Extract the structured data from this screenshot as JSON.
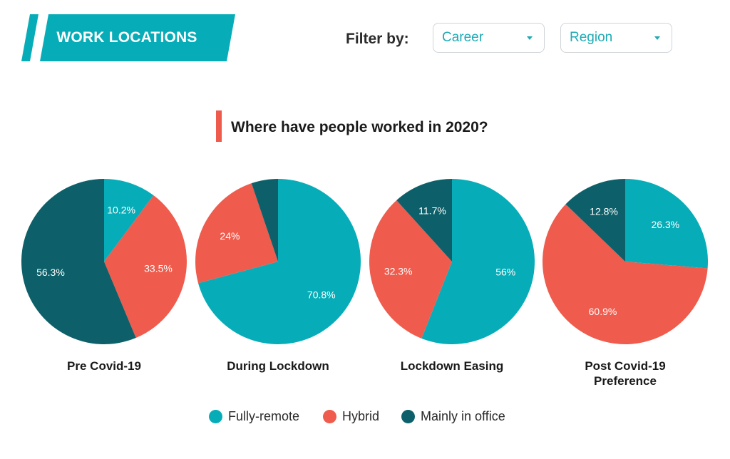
{
  "header": {
    "title": "WORK LOCATIONS"
  },
  "filters": {
    "label": "Filter by:",
    "career": {
      "value": "Career"
    },
    "region": {
      "value": "Region"
    }
  },
  "colors": {
    "fully_remote": "#06adb8",
    "hybrid": "#ef5b4c",
    "office": "#0d6069",
    "accent": "#ee5a4b",
    "banner": "#06adb8"
  },
  "chart_data": {
    "type": "pie",
    "title": "Where have people worked in 2020?",
    "legend_position": "bottom",
    "legend": [
      "Fully-remote",
      "Hybrid",
      "Mainly in office"
    ],
    "pies": [
      {
        "name": "Pre Covid-19",
        "slices": [
          {
            "category": "Fully-remote",
            "value": 10.2,
            "label": "10.2%"
          },
          {
            "category": "Hybrid",
            "value": 33.5,
            "label": "33.5%"
          },
          {
            "category": "Mainly in office",
            "value": 56.3,
            "label": "56.3%"
          }
        ]
      },
      {
        "name": "During Lockdown",
        "slices": [
          {
            "category": "Fully-remote",
            "value": 70.8,
            "label": "70.8%"
          },
          {
            "category": "Hybrid",
            "value": 24,
            "label": "24%"
          },
          {
            "category": "Mainly in office",
            "value": 5.2,
            "label": ""
          }
        ]
      },
      {
        "name": "Lockdown Easing",
        "slices": [
          {
            "category": "Fully-remote",
            "value": 56,
            "label": "56%"
          },
          {
            "category": "Hybrid",
            "value": 32.3,
            "label": "32.3%"
          },
          {
            "category": "Mainly in office",
            "value": 11.7,
            "label": "11.7%"
          }
        ]
      },
      {
        "name": "Post Covid-19 Preference",
        "name_lines": [
          "Post Covid-19",
          "Preference"
        ],
        "slices": [
          {
            "category": "Fully-remote",
            "value": 26.3,
            "label": "26.3%"
          },
          {
            "category": "Hybrid",
            "value": 60.9,
            "label": "60.9%"
          },
          {
            "category": "Mainly in office",
            "value": 12.8,
            "label": "12.8%"
          }
        ]
      }
    ]
  }
}
